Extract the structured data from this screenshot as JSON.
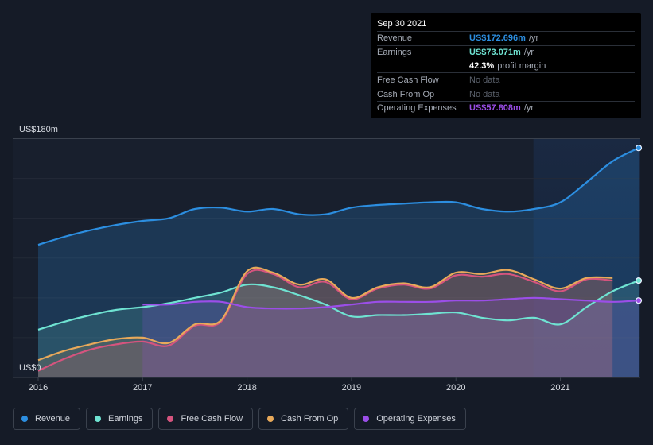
{
  "chart_data": {
    "type": "area",
    "y_max_label": "US$180m",
    "y_min_label": "US$0",
    "ylim": [
      0,
      180
    ],
    "xlim": [
      2016.0,
      2021.75
    ],
    "x_ticks": [
      "2016",
      "2017",
      "2018",
      "2019",
      "2020",
      "2021"
    ],
    "x_tick_values": [
      2016,
      2017,
      2018,
      2019,
      2020,
      2021
    ],
    "highlight_start": 2020.75,
    "series": [
      {
        "key": "revenue",
        "name": "Revenue",
        "color": "#2c8ee0",
        "x": [
          2016.0,
          2016.25,
          2016.5,
          2016.75,
          2017.0,
          2017.25,
          2017.5,
          2017.75,
          2018.0,
          2018.25,
          2018.5,
          2018.75,
          2019.0,
          2019.25,
          2019.5,
          2019.75,
          2020.0,
          2020.25,
          2020.5,
          2020.75,
          2021.0,
          2021.25,
          2021.5,
          2021.75
        ],
        "values": [
          100,
          106,
          111,
          115,
          118,
          120,
          127,
          128,
          125,
          127,
          123,
          123,
          128,
          130,
          131,
          132,
          132,
          127,
          125,
          127,
          132,
          147,
          163,
          173
        ]
      },
      {
        "key": "earnings",
        "name": "Earnings",
        "color": "#6fe3d2",
        "x": [
          2016.0,
          2016.25,
          2016.5,
          2016.75,
          2017.0,
          2017.25,
          2017.5,
          2017.75,
          2018.0,
          2018.25,
          2018.5,
          2018.75,
          2019.0,
          2019.25,
          2019.5,
          2019.75,
          2020.0,
          2020.25,
          2020.5,
          2020.75,
          2021.0,
          2021.25,
          2021.5,
          2021.75
        ],
        "values": [
          36,
          42,
          47,
          51,
          53,
          56,
          60,
          64,
          70,
          68,
          62,
          55,
          46,
          47,
          47,
          48,
          49,
          45,
          43,
          45,
          40,
          53,
          65,
          73
        ]
      },
      {
        "key": "free_cash_flow",
        "name": "Free Cash Flow",
        "color": "#d5547e",
        "x": [
          2016.0,
          2016.25,
          2016.5,
          2016.75,
          2017.0,
          2017.25,
          2017.5,
          2017.75,
          2018.0,
          2018.25,
          2018.5,
          2018.75,
          2019.0,
          2019.25,
          2019.5,
          2019.75,
          2020.0,
          2020.25,
          2020.5,
          2020.75,
          2021.0,
          2021.25,
          2021.5
        ],
        "values": [
          5,
          14,
          21,
          25,
          27,
          24,
          39,
          42,
          78,
          78,
          68,
          72,
          59,
          67,
          70,
          67,
          77,
          76,
          78,
          72,
          65,
          74,
          73
        ]
      },
      {
        "key": "cash_from_op",
        "name": "Cash From Op",
        "color": "#e8a95a",
        "x": [
          2016.0,
          2016.25,
          2016.5,
          2016.75,
          2017.0,
          2017.25,
          2017.5,
          2017.75,
          2018.0,
          2018.25,
          2018.5,
          2018.75,
          2019.0,
          2019.25,
          2019.5,
          2019.75,
          2020.0,
          2020.25,
          2020.5,
          2020.75,
          2021.0,
          2021.25,
          2021.5
        ],
        "values": [
          13,
          20,
          25,
          29,
          30,
          26,
          40,
          43,
          80,
          79,
          70,
          74,
          60,
          68,
          71,
          68,
          79,
          78,
          81,
          74,
          67,
          75,
          75
        ]
      },
      {
        "key": "operating_expenses",
        "name": "Operating Expenses",
        "color": "#9b4ee8",
        "x": [
          2017.0,
          2017.25,
          2017.5,
          2017.75,
          2018.0,
          2018.25,
          2018.5,
          2018.75,
          2019.0,
          2019.25,
          2019.5,
          2019.75,
          2020.0,
          2020.25,
          2020.5,
          2020.75,
          2021.0,
          2021.25,
          2021.5,
          2021.75
        ],
        "values": [
          55,
          55,
          57,
          57,
          53,
          52,
          52,
          53,
          55,
          57,
          57,
          57,
          58,
          58,
          59,
          60,
          59,
          58,
          57,
          58
        ]
      }
    ]
  },
  "tooltip": {
    "date": "Sep 30 2021",
    "rows": [
      {
        "label": "Revenue",
        "value": "US$172.696m",
        "unit": "/yr",
        "color": "#2c8ee0"
      },
      {
        "label": "Earnings",
        "value": "US$73.071m",
        "unit": "/yr",
        "color": "#6fe3d2"
      },
      {
        "label": "",
        "value": "42.3%",
        "unit": "profit margin",
        "color": "#ffffff"
      },
      {
        "label": "Free Cash Flow",
        "value": "No data",
        "unit": "",
        "color": ""
      },
      {
        "label": "Cash From Op",
        "value": "No data",
        "unit": "",
        "color": ""
      },
      {
        "label": "Operating Expenses",
        "value": "US$57.808m",
        "unit": "/yr",
        "color": "#9b4ee8"
      }
    ]
  },
  "legend": [
    {
      "label": "Revenue",
      "color": "#2c8ee0"
    },
    {
      "label": "Earnings",
      "color": "#6fe3d2"
    },
    {
      "label": "Free Cash Flow",
      "color": "#d5547e"
    },
    {
      "label": "Cash From Op",
      "color": "#e8a95a"
    },
    {
      "label": "Operating Expenses",
      "color": "#9b4ee8"
    }
  ]
}
